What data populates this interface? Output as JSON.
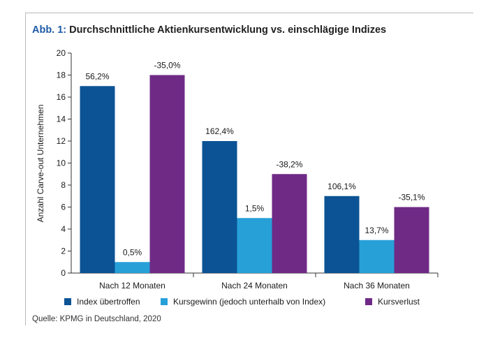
{
  "title": {
    "prefix": "Abb. 1:",
    "text": "Durchschnittliche Aktienkursentwicklung vs. einschlägige Indizes"
  },
  "source": "Quelle: KPMG in Deutschland, 2020",
  "colors": {
    "series": [
      "#0b5394",
      "#27a0d8",
      "#6f2a86"
    ],
    "frame": "#b9b9b9",
    "title_prefix": "#1c5aa6"
  },
  "chart_data": {
    "type": "bar",
    "title": "Durchschnittliche Aktienkursentwicklung vs. einschlägige Indizes",
    "ylabel": "Anzahl Carve-out Unternehmen",
    "xlabel": "",
    "ylim": [
      0,
      20
    ],
    "yticks": [
      0,
      2,
      4,
      6,
      8,
      10,
      12,
      14,
      16,
      18,
      20
    ],
    "grid": false,
    "legend_position": "bottom",
    "categories": [
      "Nach 12 Monaten",
      "Nach 24 Monaten",
      "Nach 36 Monaten"
    ],
    "series": [
      {
        "name": "Index übertroffen",
        "values": [
          17,
          12,
          7
        ],
        "labels": [
          "56,2%",
          "162,4%",
          "106,1%"
        ]
      },
      {
        "name": "Kursgewinn (jedoch unterhalb von Index)",
        "values": [
          1,
          5,
          3
        ],
        "labels": [
          "0,5%",
          "1,5%",
          "13,7%"
        ]
      },
      {
        "name": "Kursverlust",
        "values": [
          18,
          9,
          6
        ],
        "labels": [
          "-35,0%",
          "-38,2%",
          "-35,1%"
        ]
      }
    ]
  }
}
